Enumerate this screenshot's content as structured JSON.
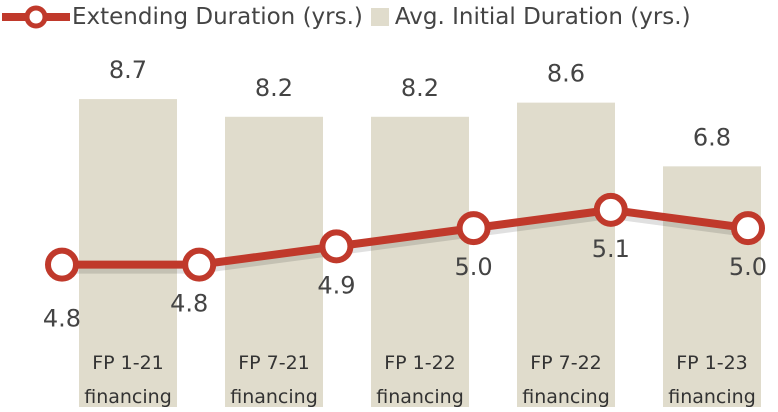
{
  "chart_data": [
    {
      "type": "bar",
      "name": "Avg. Initial Duration (yrs.)",
      "color": "#e0dccc",
      "categories": [
        "FP 1-21 financing",
        "FP 7-21 financing",
        "FP 1-22 financing",
        "FP 7-22 financing",
        "FP 1-23 financing"
      ],
      "values": [
        8.7,
        8.2,
        8.2,
        8.6,
        6.8
      ],
      "value_labels": [
        "8.7",
        "8.2",
        "8.2",
        "8.6",
        "6.8"
      ],
      "ylim": [
        0,
        11.5
      ]
    },
    {
      "type": "line",
      "name": "Extending Duration (yrs.)",
      "color": "#c0392b",
      "categories": [
        null,
        null,
        null,
        null,
        null,
        null
      ],
      "values": [
        4.8,
        4.8,
        4.9,
        5.0,
        5.1,
        5.0
      ],
      "value_labels": [
        "4.8",
        "4.8",
        "4.9",
        "5.0",
        "5.1",
        "5.0"
      ],
      "ylim": [
        4.02,
        6.25
      ]
    }
  ]
}
